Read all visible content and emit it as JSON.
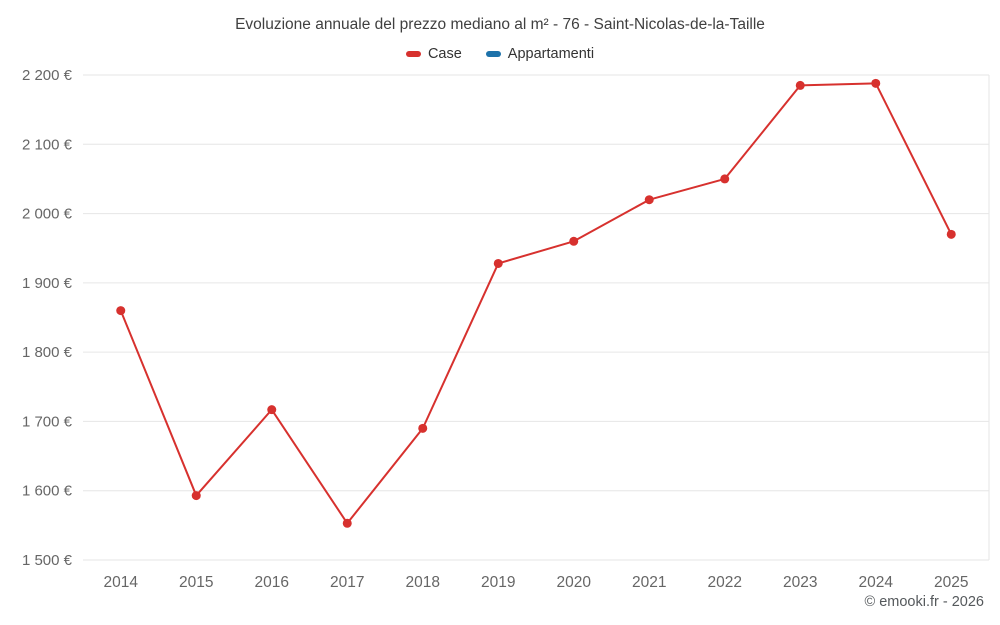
{
  "chart_data": {
    "type": "line",
    "title": "Evoluzione annuale del prezzo mediano al m² - 76 - Saint-Nicolas-de-la-Taille",
    "categories": [
      "2014",
      "2015",
      "2016",
      "2017",
      "2018",
      "2019",
      "2020",
      "2021",
      "2022",
      "2023",
      "2024",
      "2025"
    ],
    "series": [
      {
        "name": "Case",
        "color": "#d7312e",
        "values": [
          1860,
          1593,
          1717,
          1553,
          1690,
          1928,
          1960,
          2020,
          2050,
          2185,
          2188,
          1970
        ]
      },
      {
        "name": "Appartamenti",
        "color": "#1d72aa",
        "values": []
      }
    ],
    "xlabel": "",
    "ylabel": "",
    "ylim": [
      1500,
      2200
    ],
    "ytick_step": 100,
    "ytick_suffix": " €",
    "grid": "horizontal",
    "legend_position": "top"
  },
  "footer": {
    "credit": "© emooki.fr - 2026"
  }
}
